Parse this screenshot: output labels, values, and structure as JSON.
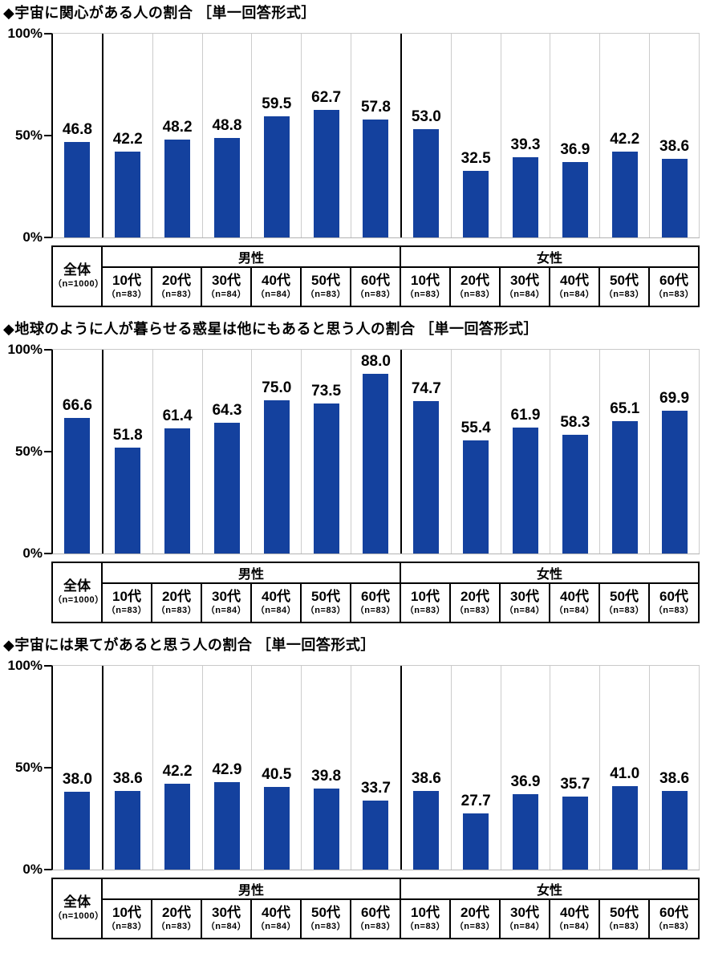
{
  "page": {
    "background": "#ffffff"
  },
  "colors": {
    "bar": "#14419e",
    "axis_line": "#000000",
    "grid_light": "#cccccc",
    "text": "#000000"
  },
  "axis": {
    "ticks": [
      {
        "label": "100%",
        "value": 100
      },
      {
        "label": "50%",
        "value": 50
      },
      {
        "label": "0%",
        "value": 0
      }
    ]
  },
  "table": {
    "overall": {
      "label": "全体",
      "n": "（n=1000）"
    },
    "groups": [
      {
        "label": "男性",
        "cols": [
          {
            "label": "10代",
            "n": "（n=83）"
          },
          {
            "label": "20代",
            "n": "（n=83）"
          },
          {
            "label": "30代",
            "n": "（n=84）"
          },
          {
            "label": "40代",
            "n": "（n=84）"
          },
          {
            "label": "50代",
            "n": "（n=83）"
          },
          {
            "label": "60代",
            "n": "（n=83）"
          }
        ]
      },
      {
        "label": "女性",
        "cols": [
          {
            "label": "10代",
            "n": "（n=83）"
          },
          {
            "label": "20代",
            "n": "（n=83）"
          },
          {
            "label": "30代",
            "n": "（n=84）"
          },
          {
            "label": "40代",
            "n": "（n=84）"
          },
          {
            "label": "50代",
            "n": "（n=83）"
          },
          {
            "label": "60代",
            "n": "（n=83）"
          }
        ]
      }
    ]
  },
  "chart_data": [
    {
      "type": "bar",
      "title": "◆宇宙に関心がある人の割合 ［単一回答形式］",
      "ylabel": "",
      "xlabel": "",
      "ylim": [
        0,
        100
      ],
      "yticks": [
        "0%",
        "50%",
        "100%"
      ],
      "legend": "none",
      "categories": [
        "全体",
        "男性10代",
        "男性20代",
        "男性30代",
        "男性40代",
        "男性50代",
        "男性60代",
        "女性10代",
        "女性20代",
        "女性30代",
        "女性40代",
        "女性50代",
        "女性60代"
      ],
      "n": [
        1000,
        83,
        83,
        84,
        84,
        83,
        83,
        83,
        83,
        84,
        84,
        83,
        83
      ],
      "values": [
        46.8,
        42.2,
        48.2,
        48.8,
        59.5,
        62.7,
        57.8,
        53.0,
        32.5,
        39.3,
        36.9,
        42.2,
        38.6
      ],
      "value_labels": [
        "46.8",
        "42.2",
        "48.2",
        "48.8",
        "59.5",
        "62.7",
        "57.8",
        "53.0",
        "32.5",
        "39.3",
        "36.9",
        "42.2",
        "38.6"
      ]
    },
    {
      "type": "bar",
      "title": "◆地球のように人が暮らせる惑星は他にもあると思う人の割合 ［単一回答形式］",
      "ylabel": "",
      "xlabel": "",
      "ylim": [
        0,
        100
      ],
      "yticks": [
        "0%",
        "50%",
        "100%"
      ],
      "legend": "none",
      "categories": [
        "全体",
        "男性10代",
        "男性20代",
        "男性30代",
        "男性40代",
        "男性50代",
        "男性60代",
        "女性10代",
        "女性20代",
        "女性30代",
        "女性40代",
        "女性50代",
        "女性60代"
      ],
      "n": [
        1000,
        83,
        83,
        84,
        84,
        83,
        83,
        83,
        83,
        84,
        84,
        83,
        83
      ],
      "values": [
        66.6,
        51.8,
        61.4,
        64.3,
        75.0,
        73.5,
        88.0,
        74.7,
        55.4,
        61.9,
        58.3,
        65.1,
        69.9
      ],
      "value_labels": [
        "66.6",
        "51.8",
        "61.4",
        "64.3",
        "75.0",
        "73.5",
        "88.0",
        "74.7",
        "55.4",
        "61.9",
        "58.3",
        "65.1",
        "69.9"
      ]
    },
    {
      "type": "bar",
      "title": "◆宇宙には果てがあると思う人の割合 ［単一回答形式］",
      "ylabel": "",
      "xlabel": "",
      "ylim": [
        0,
        100
      ],
      "yticks": [
        "0%",
        "50%",
        "100%"
      ],
      "legend": "none",
      "categories": [
        "全体",
        "男性10代",
        "男性20代",
        "男性30代",
        "男性40代",
        "男性50代",
        "男性60代",
        "女性10代",
        "女性20代",
        "女性30代",
        "女性40代",
        "女性50代",
        "女性60代"
      ],
      "n": [
        1000,
        83,
        83,
        84,
        84,
        83,
        83,
        83,
        83,
        84,
        84,
        83,
        83
      ],
      "values": [
        38.0,
        38.6,
        42.2,
        42.9,
        40.5,
        39.8,
        33.7,
        38.6,
        27.7,
        36.9,
        35.7,
        41.0,
        38.6
      ],
      "value_labels": [
        "38.0",
        "38.6",
        "42.2",
        "42.9",
        "40.5",
        "39.8",
        "33.7",
        "38.6",
        "27.7",
        "36.9",
        "35.7",
        "41.0",
        "38.6"
      ]
    }
  ]
}
